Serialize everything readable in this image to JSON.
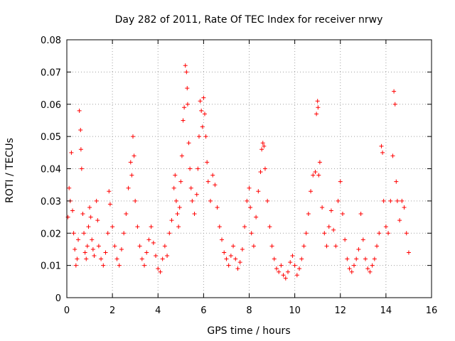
{
  "colors": {
    "series": "#ff0000",
    "grid": "#a0a0a0",
    "axis": "#000000"
  },
  "chart_data": {
    "type": "scatter",
    "title": "Day 282 of 2011, Rate Of TEC Index for receiver nrwy",
    "xlabel": "GPS time / hours",
    "ylabel": "ROTI / TECUs",
    "xlim": [
      0,
      16
    ],
    "ylim": [
      0,
      0.08
    ],
    "x_ticks": [
      0,
      2,
      4,
      6,
      8,
      10,
      12,
      14,
      16
    ],
    "x_tick_labels": [
      "0",
      "2",
      "4",
      "6",
      "8",
      "10",
      "12",
      "14",
      "16"
    ],
    "y_ticks": [
      0,
      0.01,
      0.02,
      0.03,
      0.04,
      0.05,
      0.06,
      0.07,
      0.08
    ],
    "y_tick_labels": [
      "0",
      "0.01",
      "0.02",
      "0.03",
      "0.04",
      "0.05",
      "0.06",
      "0.07",
      "0.08"
    ],
    "grid": true,
    "marker": "+",
    "series": [
      {
        "name": "ROTI",
        "color": "#ff0000",
        "points": [
          [
            0.05,
            0.025
          ],
          [
            0.1,
            0.034
          ],
          [
            0.15,
            0.03
          ],
          [
            0.2,
            0.045
          ],
          [
            0.25,
            0.027
          ],
          [
            0.3,
            0.02
          ],
          [
            0.35,
            0.015
          ],
          [
            0.4,
            0.01
          ],
          [
            0.45,
            0.012
          ],
          [
            0.5,
            0.018
          ],
          [
            0.55,
            0.058
          ],
          [
            0.6,
            0.052
          ],
          [
            0.62,
            0.046
          ],
          [
            0.65,
            0.04
          ],
          [
            0.7,
            0.026
          ],
          [
            0.75,
            0.02
          ],
          [
            0.8,
            0.014
          ],
          [
            0.85,
            0.012
          ],
          [
            0.9,
            0.016
          ],
          [
            0.95,
            0.022
          ],
          [
            1.0,
            0.028
          ],
          [
            1.05,
            0.025
          ],
          [
            1.1,
            0.018
          ],
          [
            1.15,
            0.015
          ],
          [
            1.2,
            0.013
          ],
          [
            1.3,
            0.03
          ],
          [
            1.35,
            0.024
          ],
          [
            1.4,
            0.016
          ],
          [
            1.5,
            0.012
          ],
          [
            1.6,
            0.01
          ],
          [
            1.7,
            0.014
          ],
          [
            1.8,
            0.02
          ],
          [
            1.85,
            0.033
          ],
          [
            1.9,
            0.029
          ],
          [
            2.0,
            0.022
          ],
          [
            2.1,
            0.016
          ],
          [
            2.2,
            0.012
          ],
          [
            2.3,
            0.01
          ],
          [
            2.4,
            0.015
          ],
          [
            2.5,
            0.02
          ],
          [
            2.6,
            0.026
          ],
          [
            2.7,
            0.034
          ],
          [
            2.8,
            0.042
          ],
          [
            2.85,
            0.038
          ],
          [
            2.9,
            0.05
          ],
          [
            2.95,
            0.044
          ],
          [
            3.0,
            0.03
          ],
          [
            3.1,
            0.022
          ],
          [
            3.2,
            0.016
          ],
          [
            3.3,
            0.012
          ],
          [
            3.4,
            0.01
          ],
          [
            3.5,
            0.014
          ],
          [
            3.6,
            0.018
          ],
          [
            3.7,
            0.022
          ],
          [
            3.8,
            0.017
          ],
          [
            3.9,
            0.013
          ],
          [
            4.0,
            0.009
          ],
          [
            4.1,
            0.008
          ],
          [
            4.2,
            0.012
          ],
          [
            4.3,
            0.016
          ],
          [
            4.4,
            0.013
          ],
          [
            4.5,
            0.02
          ],
          [
            4.6,
            0.024
          ],
          [
            4.7,
            0.034
          ],
          [
            4.75,
            0.038
          ],
          [
            4.8,
            0.03
          ],
          [
            4.85,
            0.026
          ],
          [
            4.9,
            0.022
          ],
          [
            4.95,
            0.028
          ],
          [
            5.0,
            0.036
          ],
          [
            5.05,
            0.044
          ],
          [
            5.1,
            0.055
          ],
          [
            5.15,
            0.059
          ],
          [
            5.2,
            0.072
          ],
          [
            5.25,
            0.07
          ],
          [
            5.28,
            0.065
          ],
          [
            5.3,
            0.06
          ],
          [
            5.35,
            0.048
          ],
          [
            5.4,
            0.04
          ],
          [
            5.45,
            0.034
          ],
          [
            5.5,
            0.03
          ],
          [
            5.6,
            0.026
          ],
          [
            5.7,
            0.032
          ],
          [
            5.75,
            0.04
          ],
          [
            5.8,
            0.05
          ],
          [
            5.85,
            0.061
          ],
          [
            5.9,
            0.058
          ],
          [
            5.95,
            0.053
          ],
          [
            6.0,
            0.062
          ],
          [
            6.05,
            0.057
          ],
          [
            6.1,
            0.05
          ],
          [
            6.15,
            0.042
          ],
          [
            6.2,
            0.036
          ],
          [
            6.3,
            0.03
          ],
          [
            6.4,
            0.038
          ],
          [
            6.5,
            0.035
          ],
          [
            6.6,
            0.028
          ],
          [
            6.7,
            0.022
          ],
          [
            6.8,
            0.018
          ],
          [
            6.9,
            0.014
          ],
          [
            7.0,
            0.012
          ],
          [
            7.1,
            0.01
          ],
          [
            7.2,
            0.013
          ],
          [
            7.3,
            0.016
          ],
          [
            7.4,
            0.012
          ],
          [
            7.5,
            0.009
          ],
          [
            7.6,
            0.011
          ],
          [
            7.7,
            0.015
          ],
          [
            7.8,
            0.022
          ],
          [
            7.9,
            0.03
          ],
          [
            8.0,
            0.034
          ],
          [
            8.05,
            0.028
          ],
          [
            8.1,
            0.02
          ],
          [
            8.2,
            0.016
          ],
          [
            8.3,
            0.025
          ],
          [
            8.4,
            0.033
          ],
          [
            8.5,
            0.039
          ],
          [
            8.55,
            0.046
          ],
          [
            8.6,
            0.048
          ],
          [
            8.65,
            0.047
          ],
          [
            8.7,
            0.04
          ],
          [
            8.8,
            0.03
          ],
          [
            8.9,
            0.022
          ],
          [
            9.0,
            0.016
          ],
          [
            9.1,
            0.012
          ],
          [
            9.2,
            0.009
          ],
          [
            9.3,
            0.008
          ],
          [
            9.4,
            0.01
          ],
          [
            9.5,
            0.007
          ],
          [
            9.6,
            0.006
          ],
          [
            9.7,
            0.008
          ],
          [
            9.8,
            0.011
          ],
          [
            9.9,
            0.013
          ],
          [
            10.0,
            0.01
          ],
          [
            10.1,
            0.007
          ],
          [
            10.2,
            0.009
          ],
          [
            10.3,
            0.012
          ],
          [
            10.4,
            0.016
          ],
          [
            10.5,
            0.02
          ],
          [
            10.6,
            0.026
          ],
          [
            10.7,
            0.033
          ],
          [
            10.8,
            0.038
          ],
          [
            10.9,
            0.039
          ],
          [
            10.95,
            0.057
          ],
          [
            11.0,
            0.061
          ],
          [
            11.02,
            0.059
          ],
          [
            11.05,
            0.038
          ],
          [
            11.1,
            0.042
          ],
          [
            11.2,
            0.028
          ],
          [
            11.3,
            0.02
          ],
          [
            11.4,
            0.016
          ],
          [
            11.5,
            0.022
          ],
          [
            11.6,
            0.027
          ],
          [
            11.7,
            0.021
          ],
          [
            11.8,
            0.016
          ],
          [
            11.9,
            0.03
          ],
          [
            12.0,
            0.036
          ],
          [
            12.1,
            0.026
          ],
          [
            12.2,
            0.018
          ],
          [
            12.3,
            0.012
          ],
          [
            12.4,
            0.009
          ],
          [
            12.5,
            0.008
          ],
          [
            12.6,
            0.01
          ],
          [
            12.7,
            0.012
          ],
          [
            12.8,
            0.015
          ],
          [
            12.9,
            0.026
          ],
          [
            13.0,
            0.018
          ],
          [
            13.1,
            0.012
          ],
          [
            13.2,
            0.009
          ],
          [
            13.3,
            0.008
          ],
          [
            13.4,
            0.01
          ],
          [
            13.5,
            0.012
          ],
          [
            13.6,
            0.016
          ],
          [
            13.7,
            0.02
          ],
          [
            13.8,
            0.047
          ],
          [
            13.85,
            0.045
          ],
          [
            13.9,
            0.03
          ],
          [
            14.0,
            0.022
          ],
          [
            14.1,
            0.02
          ],
          [
            14.2,
            0.03
          ],
          [
            14.3,
            0.044
          ],
          [
            14.35,
            0.064
          ],
          [
            14.4,
            0.06
          ],
          [
            14.45,
            0.036
          ],
          [
            14.5,
            0.03
          ],
          [
            14.6,
            0.024
          ],
          [
            14.7,
            0.03
          ],
          [
            14.8,
            0.028
          ],
          [
            14.9,
            0.02
          ],
          [
            15.0,
            0.014
          ]
        ]
      }
    ]
  }
}
